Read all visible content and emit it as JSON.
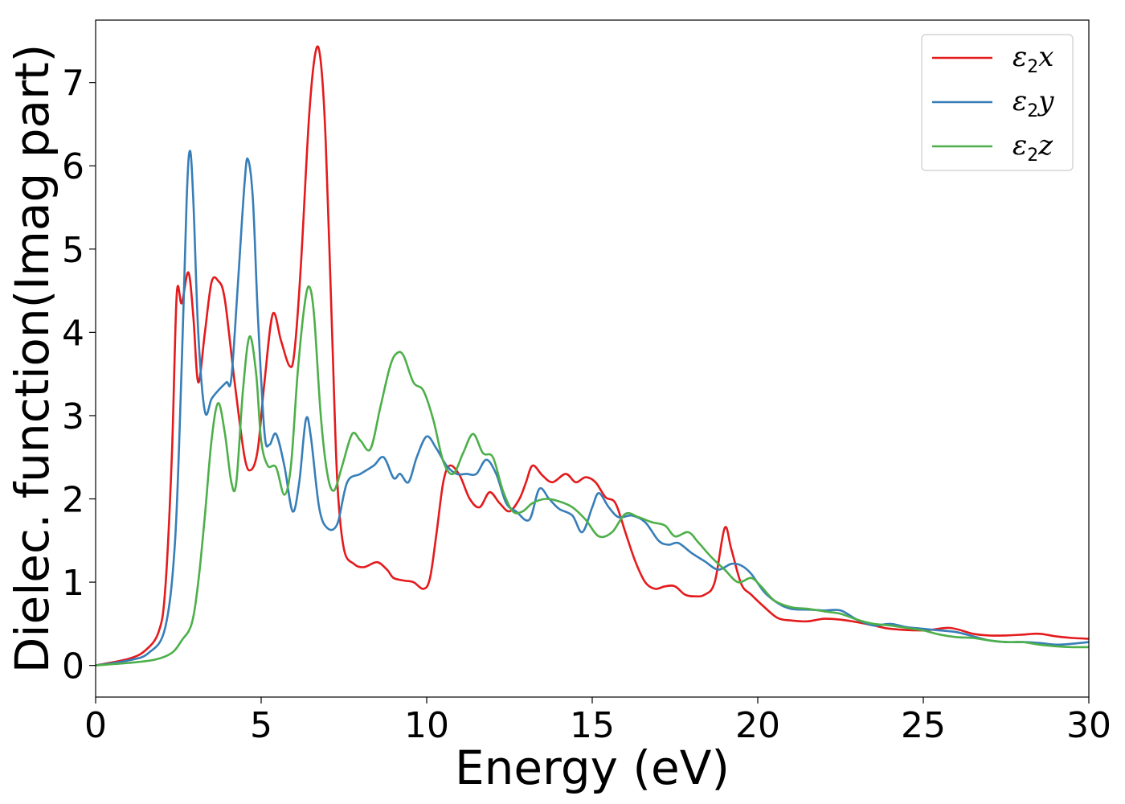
{
  "chart_data": {
    "type": "line",
    "xlabel": "Energy (eV)",
    "ylabel": "Dielec. function(Imag part)",
    "xlim": [
      0,
      30
    ],
    "ylim": [
      -0.38,
      7.75
    ],
    "xticks": [
      "0",
      "5",
      "10",
      "15",
      "20",
      "25",
      "30"
    ],
    "xtick_values": [
      0,
      5,
      10,
      15,
      20,
      25,
      30
    ],
    "yticks": [
      "0",
      "1",
      "2",
      "3",
      "4",
      "5",
      "6",
      "7"
    ],
    "ytick_values": [
      0,
      1,
      2,
      3,
      4,
      5,
      6,
      7
    ],
    "grid": false,
    "legend_position": "top-right",
    "series": [
      {
        "name": "ε₂x",
        "legend_main": "ε",
        "legend_sub": "2",
        "legend_tail": "x",
        "color": "#e41a1c",
        "points": [
          [
            0,
            0
          ],
          [
            1,
            0.08
          ],
          [
            1.5,
            0.18
          ],
          [
            1.9,
            0.4
          ],
          [
            2.1,
            0.9
          ],
          [
            2.3,
            2.5
          ],
          [
            2.45,
            4.45
          ],
          [
            2.6,
            4.35
          ],
          [
            2.8,
            4.72
          ],
          [
            2.95,
            4.2
          ],
          [
            3.1,
            3.4
          ],
          [
            3.3,
            4.0
          ],
          [
            3.5,
            4.6
          ],
          [
            3.7,
            4.62
          ],
          [
            3.9,
            4.4
          ],
          [
            4.2,
            3.4
          ],
          [
            4.5,
            2.5
          ],
          [
            4.7,
            2.35
          ],
          [
            4.9,
            2.6
          ],
          [
            5.1,
            3.4
          ],
          [
            5.35,
            4.22
          ],
          [
            5.6,
            3.9
          ],
          [
            5.85,
            3.6
          ],
          [
            6.0,
            3.75
          ],
          [
            6.2,
            4.8
          ],
          [
            6.45,
            6.6
          ],
          [
            6.65,
            7.38
          ],
          [
            6.8,
            7.25
          ],
          [
            6.95,
            6.3
          ],
          [
            7.15,
            3.9
          ],
          [
            7.3,
            2.2
          ],
          [
            7.5,
            1.4
          ],
          [
            7.8,
            1.22
          ],
          [
            8.1,
            1.18
          ],
          [
            8.5,
            1.24
          ],
          [
            8.8,
            1.15
          ],
          [
            9.0,
            1.05
          ],
          [
            9.3,
            1.02
          ],
          [
            9.6,
            1.0
          ],
          [
            9.9,
            0.92
          ],
          [
            10.1,
            1.05
          ],
          [
            10.3,
            1.6
          ],
          [
            10.5,
            2.2
          ],
          [
            10.7,
            2.4
          ],
          [
            11.0,
            2.28
          ],
          [
            11.3,
            2.0
          ],
          [
            11.6,
            1.9
          ],
          [
            11.9,
            2.08
          ],
          [
            12.2,
            1.95
          ],
          [
            12.5,
            1.85
          ],
          [
            12.8,
            2.0
          ],
          [
            13.0,
            2.2
          ],
          [
            13.2,
            2.4
          ],
          [
            13.5,
            2.28
          ],
          [
            13.8,
            2.2
          ],
          [
            14.2,
            2.3
          ],
          [
            14.5,
            2.2
          ],
          [
            14.8,
            2.26
          ],
          [
            15.1,
            2.2
          ],
          [
            15.4,
            2.02
          ],
          [
            15.7,
            1.95
          ],
          [
            16.0,
            1.6
          ],
          [
            16.3,
            1.25
          ],
          [
            16.6,
            1.0
          ],
          [
            16.9,
            0.92
          ],
          [
            17.2,
            0.95
          ],
          [
            17.5,
            0.95
          ],
          [
            17.8,
            0.85
          ],
          [
            18.1,
            0.83
          ],
          [
            18.4,
            0.85
          ],
          [
            18.7,
            1.0
          ],
          [
            19.0,
            1.65
          ],
          [
            19.2,
            1.4
          ],
          [
            19.5,
            0.98
          ],
          [
            19.8,
            0.85
          ],
          [
            20.2,
            0.7
          ],
          [
            20.6,
            0.57
          ],
          [
            21.0,
            0.54
          ],
          [
            21.5,
            0.53
          ],
          [
            22.0,
            0.56
          ],
          [
            22.5,
            0.55
          ],
          [
            23.0,
            0.52
          ],
          [
            23.5,
            0.48
          ],
          [
            24.0,
            0.44
          ],
          [
            25.0,
            0.42
          ],
          [
            25.8,
            0.45
          ],
          [
            26.5,
            0.38
          ],
          [
            27.0,
            0.36
          ],
          [
            27.5,
            0.36
          ],
          [
            28.0,
            0.37
          ],
          [
            28.5,
            0.38
          ],
          [
            29.0,
            0.35
          ],
          [
            29.5,
            0.33
          ],
          [
            30.0,
            0.32
          ]
        ]
      },
      {
        "name": "ε₂y",
        "legend_main": "ε",
        "legend_sub": "2",
        "legend_tail": "y",
        "color": "#377eb8",
        "points": [
          [
            0,
            0
          ],
          [
            1,
            0.06
          ],
          [
            1.6,
            0.15
          ],
          [
            2.1,
            0.45
          ],
          [
            2.4,
            1.5
          ],
          [
            2.6,
            3.6
          ],
          [
            2.75,
            5.6
          ],
          [
            2.85,
            6.18
          ],
          [
            2.95,
            5.6
          ],
          [
            3.1,
            4.0
          ],
          [
            3.3,
            3.05
          ],
          [
            3.5,
            3.2
          ],
          [
            3.7,
            3.3
          ],
          [
            3.95,
            3.4
          ],
          [
            4.1,
            3.45
          ],
          [
            4.3,
            4.6
          ],
          [
            4.5,
            5.8
          ],
          [
            4.6,
            6.08
          ],
          [
            4.75,
            5.6
          ],
          [
            4.9,
            4.2
          ],
          [
            5.1,
            2.8
          ],
          [
            5.25,
            2.65
          ],
          [
            5.45,
            2.78
          ],
          [
            5.7,
            2.4
          ],
          [
            5.95,
            1.85
          ],
          [
            6.15,
            2.2
          ],
          [
            6.35,
            2.95
          ],
          [
            6.5,
            2.75
          ],
          [
            6.75,
            1.9
          ],
          [
            7.0,
            1.65
          ],
          [
            7.3,
            1.7
          ],
          [
            7.6,
            2.2
          ],
          [
            8.0,
            2.3
          ],
          [
            8.4,
            2.4
          ],
          [
            8.7,
            2.5
          ],
          [
            9.0,
            2.25
          ],
          [
            9.2,
            2.3
          ],
          [
            9.45,
            2.2
          ],
          [
            9.7,
            2.5
          ],
          [
            10.0,
            2.75
          ],
          [
            10.3,
            2.6
          ],
          [
            10.6,
            2.4
          ],
          [
            10.9,
            2.3
          ],
          [
            11.2,
            2.3
          ],
          [
            11.5,
            2.3
          ],
          [
            11.8,
            2.47
          ],
          [
            12.1,
            2.3
          ],
          [
            12.4,
            1.95
          ],
          [
            12.7,
            1.85
          ],
          [
            13.1,
            1.75
          ],
          [
            13.4,
            2.12
          ],
          [
            13.7,
            2.0
          ],
          [
            14.0,
            1.88
          ],
          [
            14.4,
            1.8
          ],
          [
            14.7,
            1.6
          ],
          [
            15.0,
            1.9
          ],
          [
            15.2,
            2.07
          ],
          [
            15.5,
            1.9
          ],
          [
            15.8,
            1.78
          ],
          [
            16.2,
            1.8
          ],
          [
            16.6,
            1.72
          ],
          [
            17.0,
            1.5
          ],
          [
            17.3,
            1.45
          ],
          [
            17.6,
            1.47
          ],
          [
            18.0,
            1.35
          ],
          [
            18.4,
            1.25
          ],
          [
            18.8,
            1.15
          ],
          [
            19.2,
            1.22
          ],
          [
            19.5,
            1.2
          ],
          [
            19.8,
            1.1
          ],
          [
            20.2,
            0.88
          ],
          [
            20.6,
            0.75
          ],
          [
            21.0,
            0.68
          ],
          [
            21.6,
            0.67
          ],
          [
            22.0,
            0.66
          ],
          [
            22.5,
            0.66
          ],
          [
            23.0,
            0.55
          ],
          [
            23.5,
            0.48
          ],
          [
            24.0,
            0.5
          ],
          [
            24.5,
            0.46
          ],
          [
            25.0,
            0.44
          ],
          [
            25.5,
            0.42
          ],
          [
            26.0,
            0.4
          ],
          [
            26.5,
            0.35
          ],
          [
            27.0,
            0.3
          ],
          [
            27.5,
            0.28
          ],
          [
            28.0,
            0.28
          ],
          [
            28.5,
            0.27
          ],
          [
            29.0,
            0.25
          ],
          [
            29.5,
            0.26
          ],
          [
            30.0,
            0.28
          ]
        ]
      },
      {
        "name": "ε₂z",
        "legend_main": "ε",
        "legend_sub": "2",
        "legend_tail": "z",
        "color": "#4daf4a",
        "points": [
          [
            0,
            0
          ],
          [
            1,
            0.03
          ],
          [
            1.8,
            0.07
          ],
          [
            2.3,
            0.15
          ],
          [
            2.6,
            0.3
          ],
          [
            2.9,
            0.5
          ],
          [
            3.1,
            1.0
          ],
          [
            3.3,
            1.8
          ],
          [
            3.5,
            2.7
          ],
          [
            3.7,
            3.15
          ],
          [
            3.9,
            2.8
          ],
          [
            4.1,
            2.2
          ],
          [
            4.25,
            2.2
          ],
          [
            4.45,
            3.3
          ],
          [
            4.65,
            3.95
          ],
          [
            4.85,
            3.5
          ],
          [
            5.0,
            2.7
          ],
          [
            5.2,
            2.4
          ],
          [
            5.45,
            2.38
          ],
          [
            5.7,
            2.05
          ],
          [
            5.9,
            2.4
          ],
          [
            6.1,
            3.5
          ],
          [
            6.3,
            4.3
          ],
          [
            6.45,
            4.55
          ],
          [
            6.6,
            4.2
          ],
          [
            6.8,
            3.0
          ],
          [
            7.0,
            2.3
          ],
          [
            7.2,
            2.1
          ],
          [
            7.45,
            2.4
          ],
          [
            7.75,
            2.78
          ],
          [
            8.0,
            2.7
          ],
          [
            8.3,
            2.6
          ],
          [
            8.6,
            3.1
          ],
          [
            8.9,
            3.6
          ],
          [
            9.1,
            3.75
          ],
          [
            9.3,
            3.72
          ],
          [
            9.6,
            3.4
          ],
          [
            9.9,
            3.3
          ],
          [
            10.2,
            2.95
          ],
          [
            10.5,
            2.45
          ],
          [
            10.8,
            2.3
          ],
          [
            11.1,
            2.55
          ],
          [
            11.4,
            2.78
          ],
          [
            11.7,
            2.55
          ],
          [
            12.0,
            2.5
          ],
          [
            12.3,
            2.1
          ],
          [
            12.6,
            1.85
          ],
          [
            12.9,
            1.85
          ],
          [
            13.2,
            1.95
          ],
          [
            13.6,
            2.0
          ],
          [
            14.0,
            1.97
          ],
          [
            14.4,
            1.9
          ],
          [
            14.8,
            1.75
          ],
          [
            15.2,
            1.55
          ],
          [
            15.6,
            1.6
          ],
          [
            16.0,
            1.82
          ],
          [
            16.4,
            1.78
          ],
          [
            16.8,
            1.72
          ],
          [
            17.2,
            1.68
          ],
          [
            17.5,
            1.55
          ],
          [
            17.9,
            1.6
          ],
          [
            18.2,
            1.48
          ],
          [
            18.6,
            1.3
          ],
          [
            19.0,
            1.15
          ],
          [
            19.4,
            1.0
          ],
          [
            19.8,
            1.05
          ],
          [
            20.1,
            0.95
          ],
          [
            20.5,
            0.78
          ],
          [
            21.0,
            0.7
          ],
          [
            21.5,
            0.68
          ],
          [
            22.0,
            0.65
          ],
          [
            22.5,
            0.62
          ],
          [
            23.0,
            0.55
          ],
          [
            23.5,
            0.5
          ],
          [
            24.0,
            0.48
          ],
          [
            24.5,
            0.45
          ],
          [
            25.0,
            0.42
          ],
          [
            25.5,
            0.37
          ],
          [
            26.0,
            0.34
          ],
          [
            26.5,
            0.33
          ],
          [
            27.0,
            0.3
          ],
          [
            27.5,
            0.28
          ],
          [
            28.0,
            0.28
          ],
          [
            28.5,
            0.25
          ],
          [
            29.0,
            0.23
          ],
          [
            29.5,
            0.22
          ],
          [
            30.0,
            0.22
          ]
        ]
      }
    ]
  }
}
